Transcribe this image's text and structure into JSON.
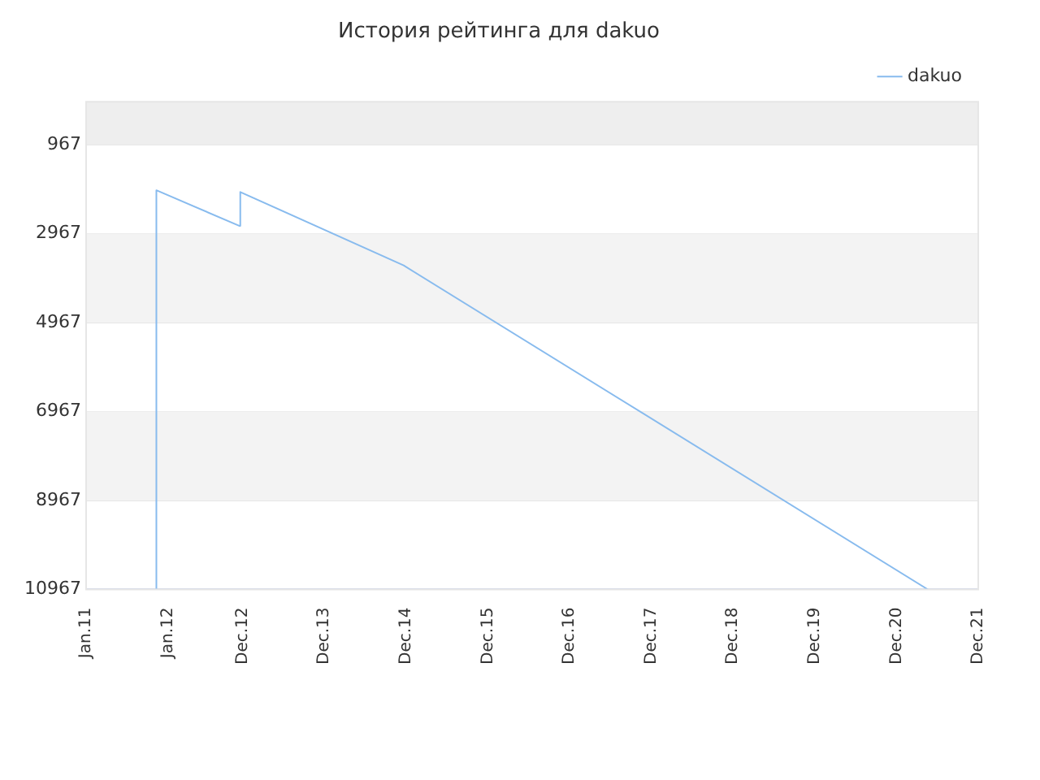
{
  "chart_data": {
    "type": "line",
    "title": "История рейтинга для dakuo",
    "series": [
      {
        "name": "dakuo",
        "color": "#88bbee",
        "x": [
          "2011-11-10",
          "2011-11-11",
          "2012-11-15",
          "2012-11-20",
          "2014-11-20",
          "2021-04-20"
        ],
        "values": [
          10967,
          1990,
          2790,
          2030,
          3680,
          10967
        ]
      }
    ],
    "xlim": [
      "2011-01-01",
      "2021-12-01"
    ],
    "xticks": [
      {
        "value": "2011-01-01",
        "label": "Jan.11"
      },
      {
        "value": "2012-01-01",
        "label": "Jan.12"
      },
      {
        "value": "2012-12-01",
        "label": "Dec.12"
      },
      {
        "value": "2013-12-01",
        "label": "Dec.13"
      },
      {
        "value": "2014-12-01",
        "label": "Dec.14"
      },
      {
        "value": "2015-12-01",
        "label": "Dec.15"
      },
      {
        "value": "2016-12-01",
        "label": "Dec.16"
      },
      {
        "value": "2017-12-01",
        "label": "Dec.17"
      },
      {
        "value": "2018-12-01",
        "label": "Dec.18"
      },
      {
        "value": "2019-12-01",
        "label": "Dec.19"
      },
      {
        "value": "2020-12-01",
        "label": "Dec.20"
      },
      {
        "value": "2021-12-01",
        "label": "Dec.21"
      }
    ],
    "ylim": [
      10967,
      0
    ],
    "yticks": [
      967,
      2967,
      4967,
      6967,
      8967,
      10967
    ],
    "bands": [
      {
        "axis": "y",
        "from": 0,
        "to": 967,
        "color": "#eeeeee"
      },
      {
        "axis": "y",
        "from": 2967,
        "to": 4967,
        "color": "#f3f3f3"
      },
      {
        "axis": "y",
        "from": 6967,
        "to": 8967,
        "color": "#f3f3f3"
      }
    ],
    "grid": "y",
    "legend": "top right",
    "marker": "none",
    "line_style": "solid"
  }
}
